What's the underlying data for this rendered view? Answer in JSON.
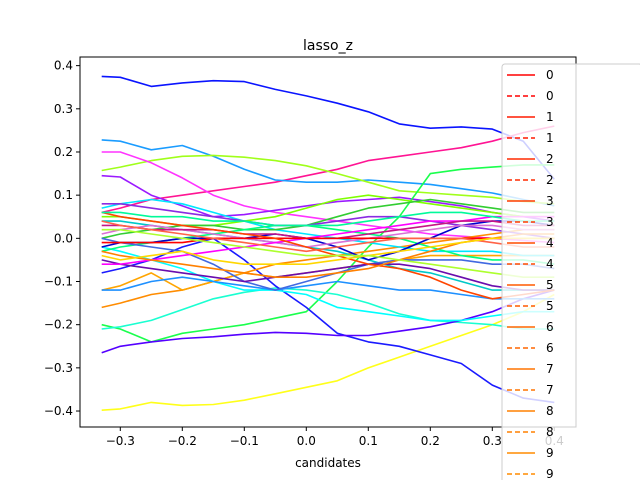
{
  "chart_data": {
    "type": "line",
    "title": "lasso_z",
    "xlabel": "candidates",
    "ylabel": "",
    "xlim": [
      -0.365,
      0.435
    ],
    "ylim": [
      -0.437,
      0.42
    ],
    "x_ticks": [
      -0.3,
      -0.2,
      -0.1,
      0.0,
      0.1,
      0.2,
      0.3,
      0.4
    ],
    "x_tick_labels": [
      "−0.3",
      "−0.2",
      "−0.1",
      "0.0",
      "0.1",
      "0.2",
      "0.3",
      "0.4"
    ],
    "y_ticks": [
      -0.4,
      -0.3,
      -0.2,
      -0.1,
      0.0,
      0.1,
      0.2,
      0.3,
      0.4
    ],
    "y_tick_labels": [
      "−0.4",
      "−0.3",
      "−0.2",
      "−0.1",
      "0.0",
      "0.1",
      "0.2",
      "0.3",
      "0.4"
    ],
    "grid": false,
    "legend_position": "top-right (clipped)",
    "legend": [
      {
        "label": "0",
        "color": "#ff0000",
        "style": "solid"
      },
      {
        "label": "0",
        "color": "#ff0000",
        "style": "dashed"
      },
      {
        "label": "1",
        "color": "#ff1a00",
        "style": "solid"
      },
      {
        "label": "1",
        "color": "#ff1a00",
        "style": "dashed"
      },
      {
        "label": "2",
        "color": "#ff2a00",
        "style": "solid"
      },
      {
        "label": "2",
        "color": "#ff2a00",
        "style": "dashed"
      },
      {
        "label": "3",
        "color": "#ff3b00",
        "style": "solid"
      },
      {
        "label": "3",
        "color": "#ff3b00",
        "style": "dashed"
      },
      {
        "label": "4",
        "color": "#ff4c00",
        "style": "solid"
      },
      {
        "label": "4",
        "color": "#ff4c00",
        "style": "dashed"
      },
      {
        "label": "5",
        "color": "#ff5a00",
        "style": "solid"
      },
      {
        "label": "5",
        "color": "#ff5a00",
        "style": "dashed"
      },
      {
        "label": "6",
        "color": "#ff6600",
        "style": "solid"
      },
      {
        "label": "6",
        "color": "#ff6600",
        "style": "dashed"
      },
      {
        "label": "7",
        "color": "#ff7300",
        "style": "solid"
      },
      {
        "label": "7",
        "color": "#ff7300",
        "style": "dashed"
      },
      {
        "label": "8",
        "color": "#ff8000",
        "style": "solid"
      },
      {
        "label": "8",
        "color": "#ff8000",
        "style": "dashed"
      },
      {
        "label": "9",
        "color": "#ff8c00",
        "style": "solid"
      },
      {
        "label": "9",
        "color": "#ff8c00",
        "style": "dashed"
      }
    ],
    "x": [
      -0.33,
      -0.3,
      -0.25,
      -0.2,
      -0.15,
      -0.1,
      -0.05,
      0.0,
      0.05,
      0.1,
      0.15,
      0.2,
      0.25,
      0.3,
      0.35,
      0.4
    ],
    "series": [
      {
        "color": "#0a14ff",
        "values": [
          0.375,
          0.373,
          0.352,
          0.36,
          0.365,
          0.363,
          0.345,
          0.33,
          0.313,
          0.293,
          0.265,
          0.255,
          0.258,
          0.253,
          0.225,
          0.137
        ]
      },
      {
        "color": "#ffff1a",
        "values": [
          -0.398,
          -0.395,
          -0.38,
          -0.387,
          -0.385,
          -0.375,
          -0.36,
          -0.345,
          -0.33,
          -0.3,
          -0.275,
          -0.25,
          -0.225,
          -0.2,
          -0.17,
          -0.13
        ]
      },
      {
        "color": "#ff1493",
        "values": [
          0.06,
          0.07,
          0.09,
          0.1,
          0.11,
          0.12,
          0.13,
          0.145,
          0.16,
          0.18,
          0.19,
          0.2,
          0.21,
          0.225,
          0.245,
          0.26
        ]
      },
      {
        "color": "#1a9cff",
        "values": [
          0.228,
          0.225,
          0.205,
          0.215,
          0.19,
          0.16,
          0.135,
          0.13,
          0.13,
          0.135,
          0.13,
          0.125,
          0.115,
          0.105,
          0.09,
          0.075
        ]
      },
      {
        "color": "#a0ff1a",
        "values": [
          0.157,
          0.165,
          0.18,
          0.19,
          0.192,
          0.188,
          0.18,
          0.168,
          0.15,
          0.13,
          0.11,
          0.105,
          0.1,
          0.095,
          0.085,
          0.08
        ]
      },
      {
        "color": "#ff33ff",
        "values": [
          0.2,
          0.2,
          0.175,
          0.14,
          0.1,
          0.075,
          0.06,
          0.05,
          0.04,
          0.03,
          0.02,
          0.01,
          0.005,
          0.0,
          -0.005,
          -0.01
        ]
      },
      {
        "color": "#9b1aff",
        "values": [
          0.145,
          0.142,
          0.1,
          0.075,
          0.05,
          0.055,
          0.065,
          0.075,
          0.085,
          0.09,
          0.095,
          0.085,
          0.075,
          0.06,
          0.05,
          0.04
        ]
      },
      {
        "color": "#1aff4d",
        "values": [
          -0.2,
          -0.21,
          -0.24,
          -0.22,
          -0.21,
          -0.2,
          -0.185,
          -0.17,
          -0.1,
          -0.02,
          0.05,
          0.15,
          0.16,
          0.165,
          0.17,
          0.17
        ]
      },
      {
        "color": "#1affd1",
        "values": [
          -0.21,
          -0.205,
          -0.19,
          -0.165,
          -0.14,
          -0.125,
          -0.115,
          -0.12,
          -0.13,
          -0.15,
          -0.175,
          -0.19,
          -0.195,
          -0.2,
          -0.21,
          -0.21
        ]
      },
      {
        "color": "#1a1aff",
        "values": [
          -0.08,
          -0.07,
          -0.05,
          -0.02,
          0.0,
          -0.05,
          -0.11,
          -0.16,
          -0.22,
          -0.24,
          -0.25,
          -0.27,
          -0.29,
          -0.34,
          -0.37,
          -0.38
        ]
      },
      {
        "color": "#5500ff",
        "values": [
          -0.265,
          -0.25,
          -0.24,
          -0.232,
          -0.228,
          -0.222,
          -0.218,
          -0.22,
          -0.225,
          -0.225,
          -0.215,
          -0.205,
          -0.19,
          -0.17,
          -0.14,
          -0.12
        ]
      },
      {
        "color": "#ff8c00",
        "values": [
          -0.16,
          -0.15,
          -0.13,
          -0.12,
          -0.1,
          -0.08,
          -0.06,
          -0.05,
          -0.04,
          -0.03,
          -0.02,
          -0.01,
          0.0,
          0.01,
          0.02,
          0.02
        ]
      },
      {
        "color": "#ffa500",
        "values": [
          -0.12,
          -0.11,
          -0.08,
          -0.12,
          -0.1,
          -0.08,
          -0.09,
          -0.08,
          -0.07,
          -0.06,
          -0.05,
          -0.04,
          -0.04,
          -0.04,
          -0.04,
          -0.04
        ]
      },
      {
        "color": "#00ffff",
        "values": [
          -0.02,
          -0.03,
          -0.05,
          -0.07,
          -0.1,
          -0.12,
          -0.12,
          -0.13,
          -0.16,
          -0.17,
          -0.18,
          -0.19,
          -0.19,
          -0.18,
          -0.17,
          -0.17
        ]
      },
      {
        "color": "#00e5ff",
        "values": [
          0.07,
          0.08,
          0.09,
          0.08,
          0.06,
          0.04,
          0.02,
          0.01,
          0.0,
          -0.01,
          -0.02,
          -0.03,
          -0.03,
          -0.03,
          -0.04,
          -0.04
        ]
      },
      {
        "color": "#00c8c8",
        "values": [
          0.04,
          0.04,
          0.03,
          0.02,
          0.01,
          0.0,
          -0.01,
          -0.02,
          -0.03,
          -0.05,
          -0.07,
          -0.08,
          -0.1,
          -0.12,
          -0.12,
          -0.12
        ]
      },
      {
        "color": "#7fff00",
        "values": [
          0.05,
          0.05,
          0.04,
          0.03,
          0.03,
          0.04,
          0.05,
          0.07,
          0.09,
          0.1,
          0.09,
          0.08,
          0.07,
          0.06,
          0.05,
          0.05
        ]
      },
      {
        "color": "#32cd32",
        "values": [
          0.0,
          0.01,
          0.02,
          0.03,
          0.03,
          0.02,
          0.02,
          0.03,
          0.05,
          0.07,
          0.08,
          0.09,
          0.08,
          0.07,
          0.06,
          0.06
        ]
      },
      {
        "color": "#00ff7f",
        "values": [
          -0.03,
          -0.02,
          -0.01,
          0.0,
          0.01,
          0.02,
          0.03,
          0.03,
          0.02,
          0.01,
          0.0,
          -0.02,
          -0.04,
          -0.05,
          -0.05,
          -0.06
        ]
      },
      {
        "color": "#1e90ff",
        "values": [
          -0.12,
          -0.12,
          -0.1,
          -0.09,
          -0.1,
          -0.11,
          -0.12,
          -0.11,
          -0.1,
          -0.11,
          -0.12,
          -0.12,
          -0.13,
          -0.14,
          -0.14,
          -0.14
        ]
      },
      {
        "color": "#0000cd",
        "values": [
          -0.02,
          -0.01,
          -0.01,
          0.0,
          0.0,
          0.0,
          0.01,
          0.0,
          -0.02,
          -0.05,
          -0.03,
          0.0,
          0.03,
          0.04,
          0.04,
          0.03
        ]
      },
      {
        "color": "#4169e1",
        "values": [
          0.0,
          -0.01,
          -0.02,
          -0.03,
          -0.06,
          -0.1,
          -0.12,
          -0.1,
          -0.08,
          -0.06,
          -0.05,
          -0.05,
          -0.05,
          -0.06,
          -0.06,
          -0.07
        ]
      },
      {
        "color": "#6a0dad",
        "values": [
          -0.05,
          -0.06,
          -0.07,
          -0.08,
          -0.09,
          -0.1,
          -0.09,
          -0.08,
          -0.07,
          -0.06,
          -0.06,
          -0.07,
          -0.09,
          -0.11,
          -0.12,
          -0.12
        ]
      },
      {
        "color": "#8a2be2",
        "values": [
          0.08,
          0.08,
          0.07,
          0.06,
          0.05,
          0.04,
          0.03,
          0.03,
          0.04,
          0.05,
          0.05,
          0.04,
          0.03,
          0.02,
          0.01,
          0.0
        ]
      },
      {
        "color": "#da70d6",
        "values": [
          0.01,
          0.02,
          0.03,
          0.02,
          0.01,
          0.0,
          -0.01,
          -0.02,
          -0.01,
          0.0,
          0.01,
          0.02,
          0.03,
          0.03,
          0.02,
          0.02
        ]
      },
      {
        "color": "#ff00ff",
        "values": [
          -0.06,
          -0.06,
          -0.05,
          -0.04,
          -0.03,
          -0.02,
          -0.01,
          0.0,
          0.01,
          0.02,
          0.03,
          0.04,
          0.04,
          0.05,
          0.05,
          0.05
        ]
      },
      {
        "color": "#c71585",
        "values": [
          0.03,
          0.03,
          0.02,
          0.02,
          0.02,
          0.01,
          0.01,
          0.0,
          0.0,
          0.01,
          0.02,
          0.03,
          0.04,
          0.04,
          0.03,
          0.03
        ]
      },
      {
        "color": "#ff0000",
        "values": [
          -0.01,
          -0.01,
          -0.01,
          -0.01,
          0.0,
          0.0,
          0.0,
          0.0,
          0.0,
          0.0,
          0.0,
          0.0,
          0.0,
          0.0,
          0.0,
          0.0
        ]
      },
      {
        "color": "#ff4500",
        "values": [
          0.06,
          0.05,
          0.04,
          0.03,
          0.02,
          0.01,
          0.0,
          -0.02,
          -0.04,
          -0.06,
          -0.07,
          -0.09,
          -0.12,
          -0.14,
          -0.13,
          -0.12
        ]
      },
      {
        "color": "#ff6347",
        "values": [
          0.04,
          0.03,
          0.02,
          0.01,
          0.0,
          -0.01,
          -0.02,
          -0.03,
          -0.02,
          -0.01,
          0.0,
          0.0,
          0.0,
          -0.01,
          -0.02,
          -0.02
        ]
      },
      {
        "color": "#ff8000",
        "values": [
          -0.03,
          -0.04,
          -0.05,
          -0.06,
          -0.07,
          -0.08,
          -0.09,
          -0.09,
          -0.08,
          -0.07,
          -0.05,
          -0.03,
          -0.01,
          0.0,
          0.01,
          0.01
        ]
      },
      {
        "color": "#ffd700",
        "values": [
          -0.04,
          -0.05,
          -0.04,
          -0.03,
          -0.05,
          -0.06,
          -0.06,
          -0.06,
          -0.05,
          -0.04,
          -0.03,
          -0.02,
          -0.01,
          0.0,
          0.0,
          0.0
        ]
      },
      {
        "color": "#adff2f",
        "values": [
          0.02,
          0.02,
          0.01,
          0.0,
          -0.01,
          -0.02,
          -0.03,
          -0.04,
          -0.04,
          -0.04,
          -0.05,
          -0.06,
          -0.07,
          -0.08,
          -0.09,
          -0.09
        ]
      },
      {
        "color": "#00fa9a",
        "values": [
          0.06,
          0.06,
          0.05,
          0.05,
          0.04,
          0.04,
          0.03,
          0.03,
          0.03,
          0.04,
          0.05,
          0.06,
          0.06,
          0.05,
          0.04,
          0.04
        ]
      }
    ]
  }
}
